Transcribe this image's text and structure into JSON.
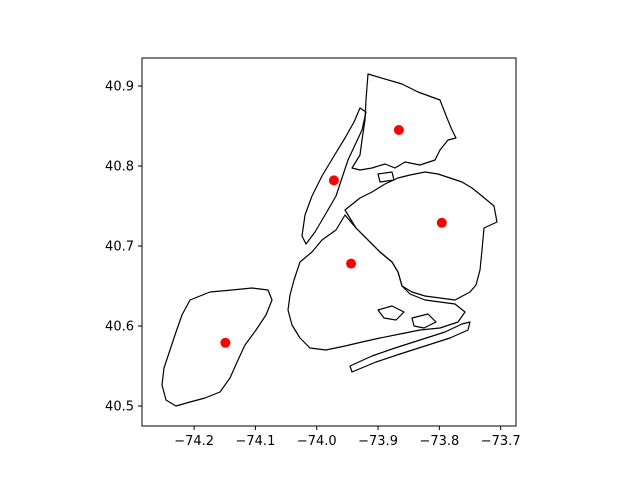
{
  "chart_data": {
    "type": "scatter",
    "title": "",
    "xlabel": "",
    "ylabel": "",
    "xlim": [
      -74.285,
      -73.675
    ],
    "ylim": [
      40.475,
      40.935
    ],
    "x_ticks": [
      -74.2,
      -74.1,
      -74.0,
      -73.9,
      -73.8,
      -73.7
    ],
    "x_tick_labels": [
      "−74.2",
      "−74.1",
      "−74.0",
      "−73.9",
      "−73.8",
      "−73.7"
    ],
    "y_ticks": [
      40.5,
      40.6,
      40.7,
      40.8,
      40.9
    ],
    "y_tick_labels": [
      "40.5",
      "40.6",
      "40.7",
      "40.8",
      "40.9"
    ],
    "grid": false,
    "marker_color": "#ff0000",
    "outline_color": "#000000",
    "points": [
      {
        "x": -73.866,
        "y": 40.845
      },
      {
        "x": -73.972,
        "y": 40.782
      },
      {
        "x": -73.796,
        "y": 40.729
      },
      {
        "x": -73.944,
        "y": 40.678
      },
      {
        "x": -74.149,
        "y": 40.579
      }
    ]
  }
}
